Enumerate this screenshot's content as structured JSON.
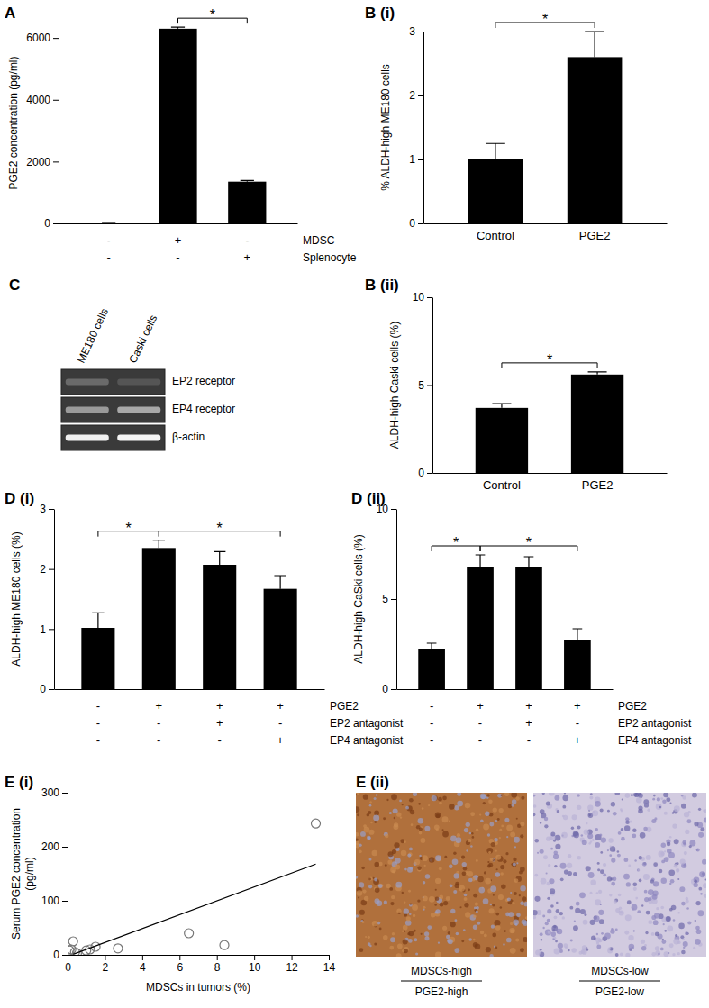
{
  "chart_data": [
    {
      "type": "bar",
      "title": "A",
      "categories": [
        null,
        null,
        null
      ],
      "values": [
        0,
        6300,
        1350
      ],
      "errors": [
        0,
        50,
        40
      ],
      "color": "#000000",
      "y_label": "PGE2 concentration (pg/ml)",
      "ylim": [
        0,
        6500
      ],
      "yticks": [
        0,
        2000,
        4000,
        6000
      ],
      "conditions": [
        {
          "label": "MDSC",
          "values": [
            "-",
            "+",
            "-"
          ]
        },
        {
          "label": "Splenocyte",
          "values": [
            "-",
            "-",
            "+"
          ]
        }
      ],
      "brackets": [
        {
          "from": 1,
          "to": 2,
          "label": "*"
        }
      ]
    },
    {
      "type": "bar",
      "title": "B (i)",
      "categories": [
        "Control",
        "PGE2"
      ],
      "values": [
        1.0,
        2.6
      ],
      "errors": [
        0.25,
        0.4
      ],
      "color": "#000000",
      "y_label": "% ALDH-high ME180 cells",
      "ylim": [
        0,
        3
      ],
      "yticks": [
        0,
        1,
        2,
        3
      ],
      "brackets": [
        {
          "from": 0,
          "to": 1,
          "label": "*"
        }
      ]
    },
    {
      "type": "bar",
      "title": "B (ii)",
      "categories": [
        "Control",
        "PGE2"
      ],
      "values": [
        3.7,
        5.6
      ],
      "errors": [
        0.25,
        0.15
      ],
      "color": "#000000",
      "y_label": "ALDH-high Caski cells (%)",
      "ylim": [
        0,
        10
      ],
      "yticks": [
        0,
        5,
        10
      ],
      "brackets": [
        {
          "from": 0,
          "to": 1,
          "label": "*"
        }
      ]
    },
    {
      "type": "bar",
      "title": "D (i)",
      "categories": [
        null,
        null,
        null,
        null
      ],
      "values": [
        1.02,
        2.35,
        2.07,
        1.67
      ],
      "errors": [
        0.25,
        0.13,
        0.22,
        0.22
      ],
      "color": "#000000",
      "y_label": "ALDH-high ME180 cells (%)",
      "ylim": [
        0,
        3
      ],
      "yticks": [
        0,
        1,
        2,
        3
      ],
      "conditions": [
        {
          "label": "PGE2",
          "values": [
            "-",
            "+",
            "+",
            "+"
          ]
        },
        {
          "label": "EP2 antagonist",
          "values": [
            "-",
            "-",
            "+",
            "-"
          ]
        },
        {
          "label": "EP4 antagonist",
          "values": [
            "-",
            "-",
            "-",
            "+"
          ]
        }
      ],
      "brackets": [
        {
          "from": 0,
          "to": 1,
          "label": "*"
        },
        {
          "from": 1,
          "to": 3,
          "label": "*"
        }
      ]
    },
    {
      "type": "bar",
      "title": "D (ii)",
      "categories": [
        null,
        null,
        null,
        null
      ],
      "values": [
        2.25,
        6.8,
        6.8,
        2.75
      ],
      "errors": [
        0.3,
        0.65,
        0.55,
        0.6
      ],
      "color": "#000000",
      "y_label": "ALDH-high CaSki cells (%)",
      "ylim": [
        0,
        10
      ],
      "yticks": [
        0,
        5,
        10
      ],
      "conditions": [
        {
          "label": "PGE2",
          "values": [
            "-",
            "+",
            "+",
            "+"
          ]
        },
        {
          "label": "EP2 antagonist",
          "values": [
            "-",
            "-",
            "+",
            "-"
          ]
        },
        {
          "label": "EP4 antagonist",
          "values": [
            "-",
            "-",
            "-",
            "+"
          ]
        }
      ],
      "brackets": [
        {
          "from": 0,
          "to": 1,
          "label": "*"
        },
        {
          "from": 1,
          "to": 3,
          "label": "*"
        }
      ]
    },
    {
      "type": "scatter",
      "title": "E (i)",
      "x": [
        0.1,
        0.2,
        0.3,
        0.4,
        0.5,
        1.0,
        1.2,
        1.5,
        2.7,
        6.5,
        8.4,
        13.3
      ],
      "y": [
        8,
        10,
        25,
        5,
        3,
        8,
        10,
        15,
        12,
        40,
        18,
        243
      ],
      "marker": "circle-open",
      "color": "#777777",
      "x_label": "MDSCs in tumors (%)",
      "y_label": [
        "Serum PGE2 concentration",
        "(pg/ml)"
      ],
      "xlim": [
        0,
        14
      ],
      "xticks": [
        0,
        2,
        4,
        6,
        8,
        10,
        12,
        14
      ],
      "ylim": [
        0,
        300
      ],
      "yticks": [
        0,
        100,
        200,
        300
      ],
      "fit": {
        "x": [
          0.3,
          13.3
        ],
        "y": [
          1,
          168
        ]
      }
    }
  ],
  "gel": {
    "title": "C",
    "lanes": [
      "ME180 cells",
      "Caski cells"
    ],
    "rows": [
      "EP2 receptor",
      "EP4 receptor",
      "β-actin"
    ]
  },
  "histology": {
    "title": "E (ii)",
    "images": [
      {
        "label": "MDSCs-high",
        "sublabel": "PGE2-high"
      },
      {
        "label": "MDSCs-low",
        "sublabel": "PGE2-low"
      }
    ]
  }
}
